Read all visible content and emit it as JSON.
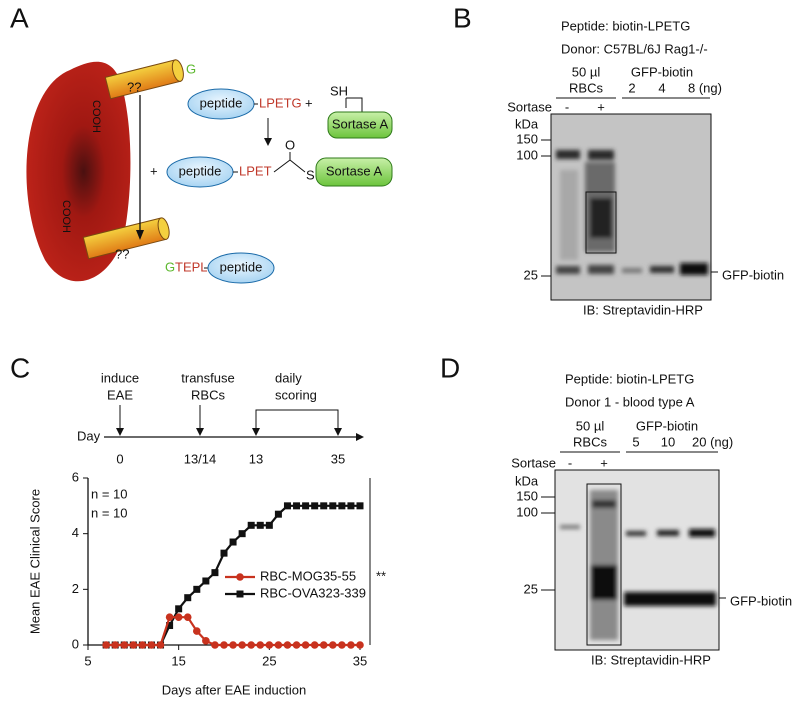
{
  "panel_labels": [
    "A",
    "B",
    "C",
    "D"
  ],
  "diagram": {
    "g_top": "G",
    "cooh": [
      "COOH",
      "COOH"
    ],
    "unknown": [
      "??",
      "??"
    ],
    "peptide": [
      "peptide",
      "peptide",
      "peptide"
    ],
    "lpetg": "LPETG",
    "plus": [
      "+",
      "+"
    ],
    "sh": "SH",
    "sortase": [
      "Sortase A",
      "Sortase A"
    ],
    "lpet": "LPET",
    "o": "O",
    "s": "S",
    "product_g": "G",
    "product_rest": "TEPL"
  },
  "blot_b": {
    "peptide": "Peptide: biotin-LPETG",
    "donor": "Donor: C57BL/6J Rag1-/-",
    "rbc_amount": "50 µl",
    "rbc": "RBCs",
    "gfp_header": "GFP-biotin",
    "gfp_amounts": [
      "2",
      "4",
      "8 (ng)"
    ],
    "sortase": "Sortase",
    "sortase_lanes": [
      "-",
      "+"
    ],
    "kda": "kDa",
    "markers": [
      "150",
      "100",
      "25"
    ],
    "band_label": "GFP-biotin",
    "ib": "IB: Streptavidin-HRP"
  },
  "blot_d": {
    "peptide": "Peptide: biotin-LPETG",
    "donor": "Donor 1 - blood type A",
    "rbc_amount": "50 µl",
    "rbc": "RBCs",
    "gfp_header": "GFP-biotin",
    "gfp_amounts": [
      "5",
      "10",
      "20 (ng)"
    ],
    "sortase": "Sortase",
    "sortase_lanes": [
      "-",
      "+"
    ],
    "kda": "kDa",
    "markers": [
      "150",
      "100",
      "25"
    ],
    "band_label": "GFP-biotin",
    "ib": "IB: Streptavidin-HRP"
  },
  "timeline": {
    "axis_label": "Day",
    "events": [
      {
        "lines": [
          "induce",
          "EAE"
        ],
        "day": "0"
      },
      {
        "lines": [
          "transfuse",
          "RBCs"
        ],
        "day": "13/14"
      },
      {
        "lines": [
          "daily",
          "scoring"
        ],
        "days": [
          "13",
          "35"
        ]
      }
    ]
  },
  "chart_data": {
    "type": "line",
    "x_label": "Days after EAE induction",
    "y_label": "Mean EAE Clinical Score",
    "xlim": [
      5,
      35
    ],
    "xticks": [
      5,
      15,
      25,
      35
    ],
    "ylim": [
      0,
      6
    ],
    "yticks": [
      0,
      2,
      4,
      6
    ],
    "x": [
      7,
      8,
      9,
      10,
      11,
      12,
      13,
      14,
      15,
      16,
      17,
      18,
      19,
      20,
      21,
      22,
      23,
      24,
      25,
      26,
      27,
      28,
      29,
      30,
      31,
      32,
      33,
      34,
      35
    ],
    "series": [
      {
        "name": "RBC-MOG35-55",
        "color": "#c8321e",
        "marker": "circle",
        "values": [
          0,
          0,
          0,
          0,
          0,
          0,
          0,
          1,
          1,
          1,
          0.5,
          0.15,
          0,
          0,
          0,
          0,
          0,
          0,
          0,
          0,
          0,
          0,
          0,
          0,
          0,
          0,
          0,
          0,
          0
        ]
      },
      {
        "name": "RBC-OVA323-339",
        "color": "#111111",
        "marker": "square",
        "values": [
          0,
          0,
          0,
          0,
          0,
          0,
          0,
          0.7,
          1.3,
          1.7,
          2,
          2.3,
          2.6,
          3.3,
          3.7,
          4,
          4.3,
          4.3,
          4.3,
          4.7,
          5,
          5,
          5,
          5,
          5,
          5,
          5,
          5,
          5
        ]
      }
    ],
    "annotations": [
      {
        "text": "n = 10",
        "color": "#111111"
      },
      {
        "text": "n = 10",
        "color": "#c8321e"
      }
    ],
    "significance": "**"
  }
}
